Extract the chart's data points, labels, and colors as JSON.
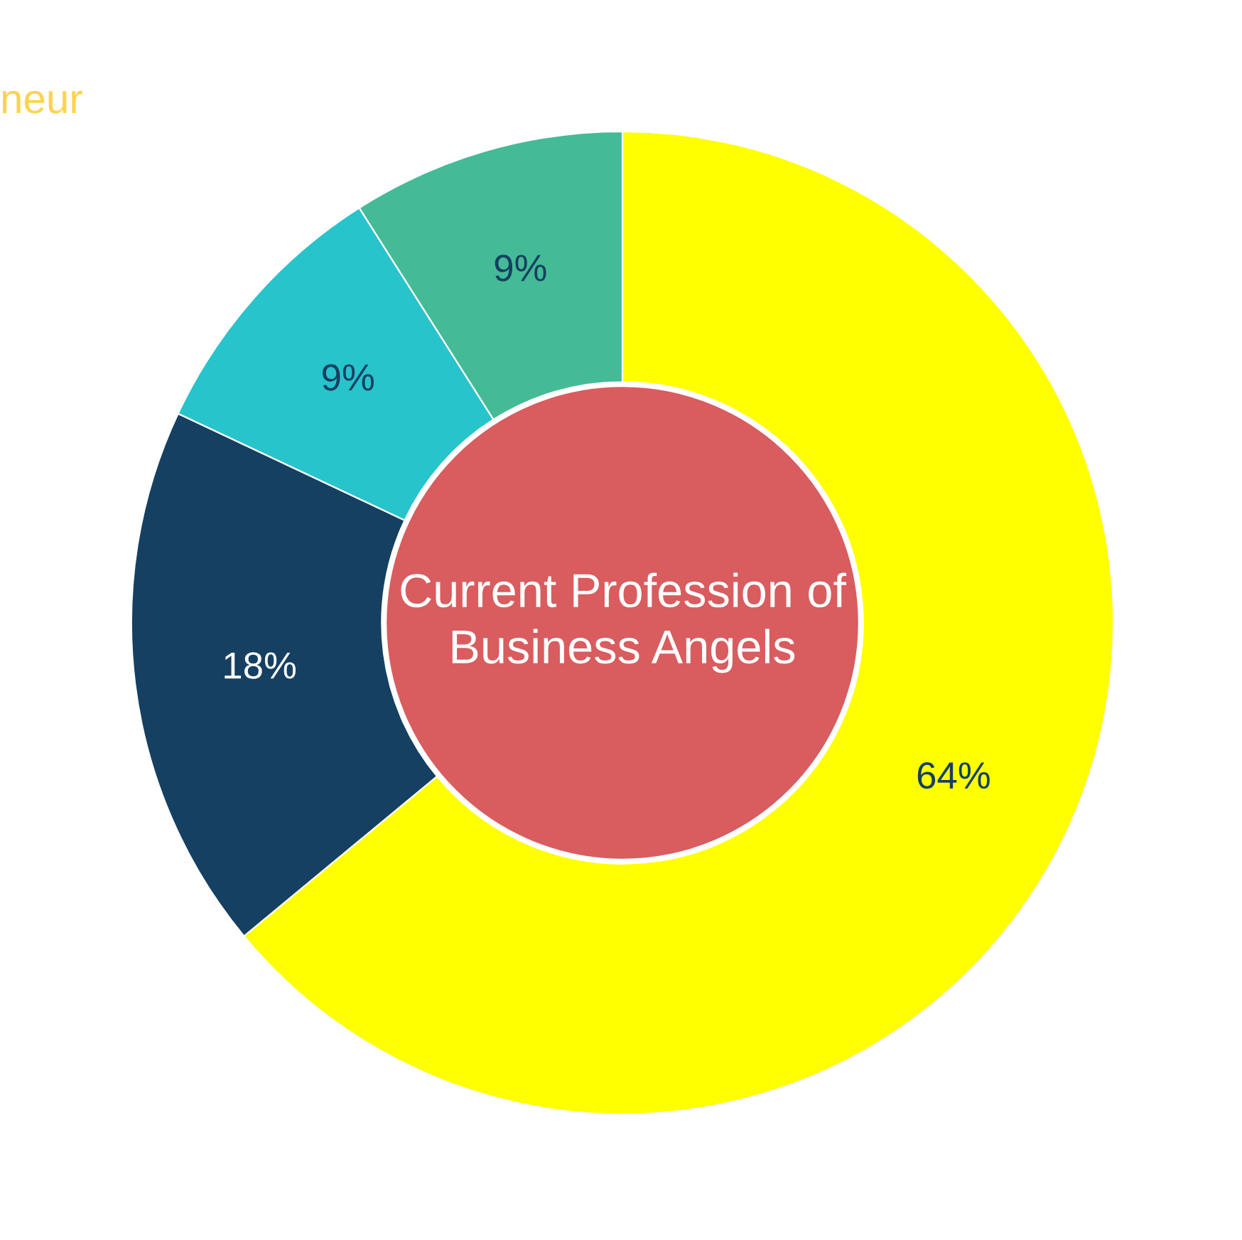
{
  "chart_data": {
    "type": "donut",
    "title": "Current Profession of Business Angels",
    "categories": [
      null,
      null,
      null,
      null
    ],
    "values": [
      64,
      18,
      9,
      9
    ],
    "colors": [
      "#ffff00",
      "#154062",
      "#27c4cc",
      "#44bb96"
    ],
    "value_labels": [
      "64%",
      "18%",
      "9%",
      "9%"
    ],
    "legend": false,
    "annotations": [
      "neur"
    ]
  }
}
